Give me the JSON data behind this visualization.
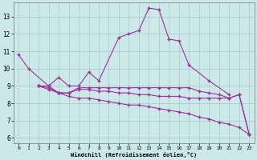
{
  "xlabel": "Windchill (Refroidissement éolien,°C)",
  "background_color": "#cce8e8",
  "grid_color": "#aacfcf",
  "line_color": "#993399",
  "x_ticks": [
    0,
    1,
    2,
    3,
    4,
    5,
    6,
    7,
    8,
    9,
    10,
    11,
    12,
    13,
    14,
    15,
    16,
    17,
    18,
    19,
    20,
    21,
    22,
    23
  ],
  "y_ticks": [
    6,
    7,
    8,
    9,
    10,
    11,
    12,
    13
  ],
  "ylim": [
    5.7,
    13.8
  ],
  "xlim": [
    -0.5,
    23.5
  ],
  "line1_x": [
    0,
    1,
    3,
    4,
    5,
    6,
    7,
    8,
    10,
    11,
    12,
    13,
    14,
    15,
    16,
    17,
    19,
    21
  ],
  "line1_y": [
    10.8,
    10.0,
    9.0,
    9.5,
    9.0,
    9.0,
    9.8,
    9.3,
    11.8,
    12.0,
    12.2,
    13.5,
    13.4,
    11.7,
    11.6,
    10.2,
    9.3,
    8.5
  ],
  "line2_x": [
    2,
    3,
    4,
    5,
    6,
    7,
    8,
    9,
    10,
    11,
    12,
    13,
    14,
    15,
    16,
    17,
    18,
    19,
    20,
    21,
    22,
    23
  ],
  "line2_y": [
    9.0,
    9.0,
    8.6,
    8.6,
    8.9,
    8.9,
    8.9,
    8.9,
    8.9,
    8.9,
    8.9,
    8.9,
    8.9,
    8.9,
    8.9,
    8.9,
    8.7,
    8.6,
    8.5,
    8.3,
    8.5,
    6.2
  ],
  "line3_x": [
    2,
    3,
    4,
    5,
    6,
    7,
    8,
    9,
    10,
    11,
    12,
    13,
    14,
    15,
    16,
    17,
    18,
    19,
    20,
    21,
    22,
    23
  ],
  "line3_y": [
    9.0,
    8.9,
    8.6,
    8.4,
    8.3,
    8.3,
    8.2,
    8.1,
    8.0,
    7.9,
    7.9,
    7.8,
    7.7,
    7.6,
    7.5,
    7.4,
    7.2,
    7.1,
    6.9,
    6.8,
    6.6,
    6.2
  ],
  "line4_x": [
    2,
    3,
    4,
    5,
    6,
    7,
    8,
    9,
    10,
    11,
    12,
    13,
    14,
    15,
    16,
    17,
    18,
    19,
    20,
    21,
    22,
    23
  ],
  "line4_y": [
    9.0,
    8.8,
    8.6,
    8.6,
    8.8,
    8.8,
    8.7,
    8.7,
    8.6,
    8.6,
    8.5,
    8.5,
    8.4,
    8.4,
    8.4,
    8.3,
    8.3,
    8.3,
    8.3,
    8.3,
    8.5,
    6.2
  ]
}
